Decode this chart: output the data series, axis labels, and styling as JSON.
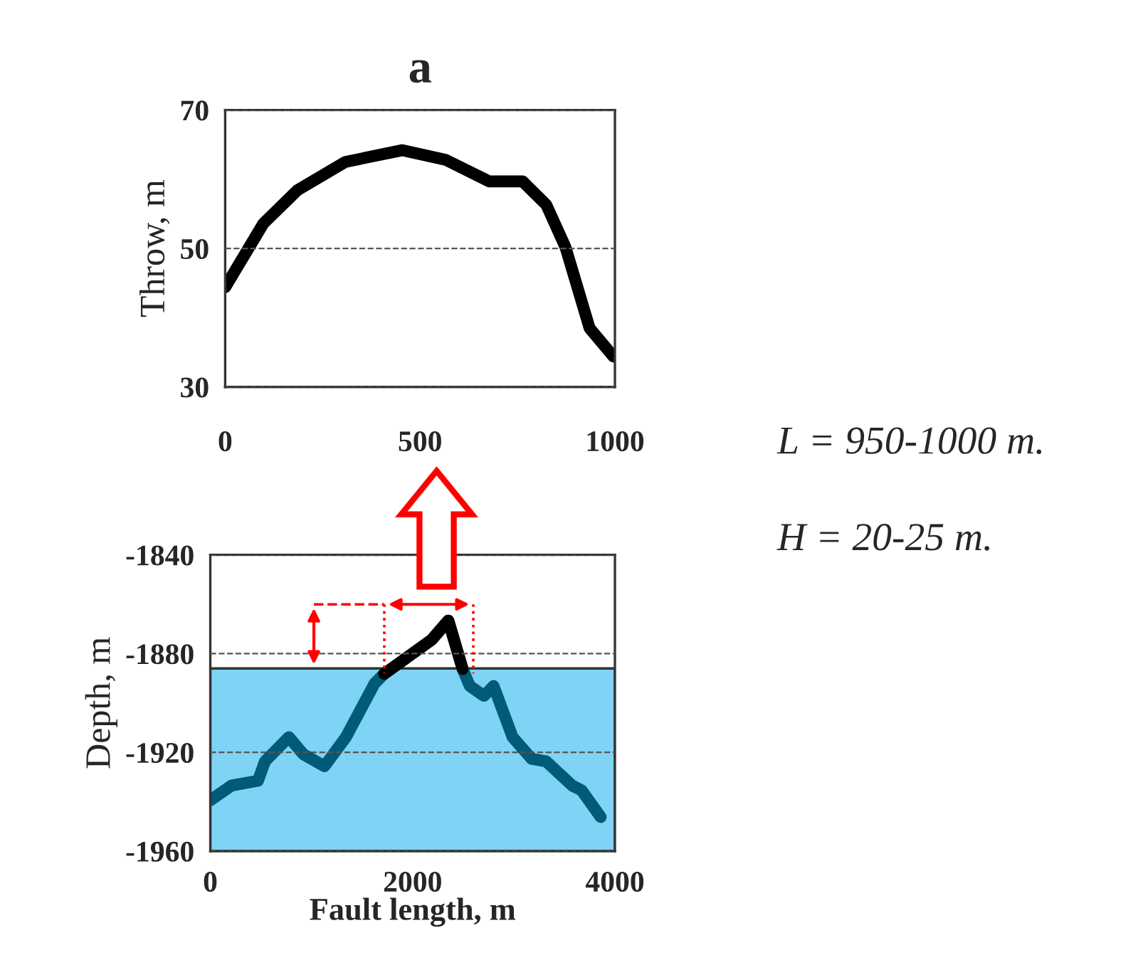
{
  "chart_data": [
    {
      "type": "line",
      "title": "a",
      "ylabel": "Throw, m",
      "series": [
        {
          "color": "#000000",
          "x": [
            0,
            98,
            185,
            308,
            455,
            566,
            677,
            763,
            824,
            873,
            935,
            996
          ],
          "values": [
            44.4,
            53.6,
            58.4,
            62.5,
            64.2,
            62.8,
            59.7,
            59.7,
            56.3,
            50.2,
            38.5,
            34.4
          ]
        }
      ],
      "xlim": [
        0,
        1000
      ],
      "xticks": [
        0,
        500,
        1000
      ],
      "ylim": [
        30,
        70
      ],
      "yticks": [
        30,
        50,
        70
      ],
      "grid": "y",
      "legend": false
    },
    {
      "type": "line",
      "xlabel": "Fault length, m",
      "ylabel": "Depth, m",
      "series": [
        {
          "color": "#005a78",
          "x": [
            0,
            212,
            471,
            541,
            776,
            918,
            1129,
            1341,
            1624,
            1718,
            2188,
            2353,
            2494,
            2565,
            2706,
            2800,
            2988,
            3176,
            3318,
            3576,
            3671,
            3859
          ],
          "values": [
            -1939.4,
            -1933.4,
            -1931.5,
            -1923.6,
            -1913.8,
            -1920.7,
            -1925.6,
            -1913.8,
            -1892.1,
            -1888.2,
            -1874.4,
            -1866.6,
            -1886.2,
            -1893.1,
            -1897.1,
            -1893.1,
            -1913.8,
            -1922.6,
            -1923.6,
            -1933.4,
            -1935.4,
            -1946.2
          ]
        },
        {
          "color": "#000000",
          "x": [
            1718,
            2188,
            2353,
            2494
          ],
          "values": [
            -1888.2,
            -1874.4,
            -1866.6,
            -1886.2
          ]
        }
      ],
      "bands": [
        {
          "axis": "y",
          "from": -1960,
          "to": -1886,
          "color": "#7fd3f5"
        }
      ],
      "xlim": [
        0,
        4000
      ],
      "xticks": [
        0,
        2000,
        4000
      ],
      "ylim": [
        -1960,
        -1840
      ],
      "yticks": [
        -1960,
        -1920,
        -1880,
        -1840
      ],
      "grid": "y",
      "legend": false,
      "annotations": [
        "L = 950-1000 m.",
        "H = 20-25 m."
      ]
    }
  ]
}
